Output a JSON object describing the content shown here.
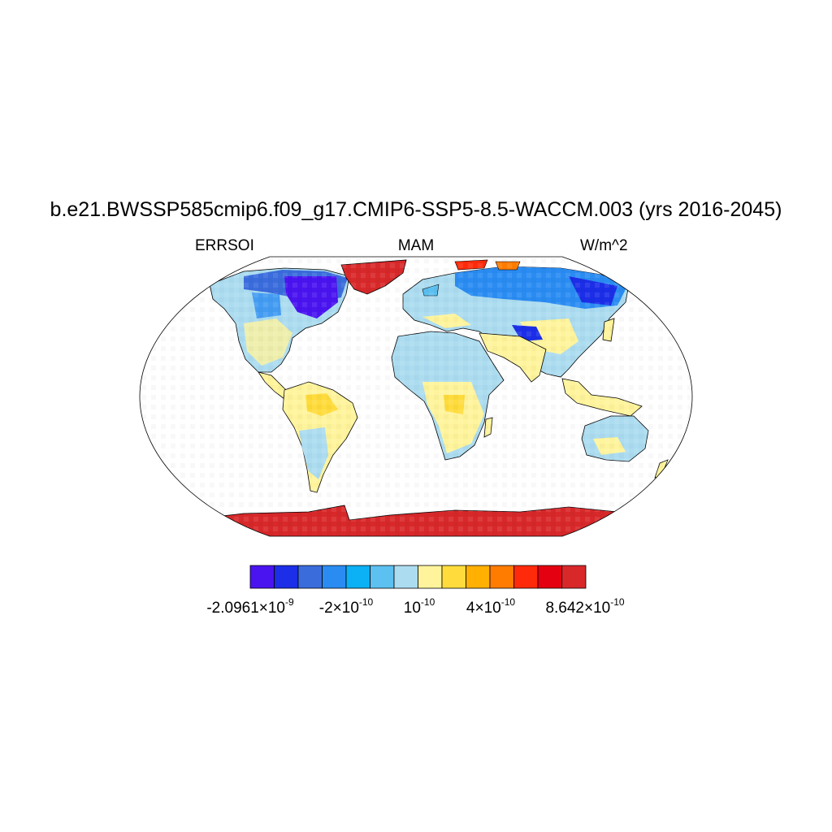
{
  "title": "b.e21.BWSSP585cmip6.f09_g17.CMIP6-SSP5-8.5-WACCM.003 (yrs 2016-2045)",
  "subtitle_left": "ERRSOI",
  "subtitle_center": "MAM",
  "subtitle_right": "W/m^2",
  "colorbar": {
    "colors": [
      "#4a14f0",
      "#1c2ee8",
      "#3a6cdc",
      "#2a8cf2",
      "#0cb0f4",
      "#5cc0f0",
      "#acdcf0",
      "#fff49c",
      "#ffdc3c",
      "#ffb000",
      "#ff7c00",
      "#ff2a0a",
      "#e40010",
      "#d8282a"
    ],
    "labels": [
      {
        "mantissa": "-2.0961×10",
        "exponent": "-9"
      },
      {
        "mantissa": "-2×10",
        "exponent": "-10"
      },
      {
        "mantissa": "10",
        "exponent": "-10"
      },
      {
        "mantissa": "4×10",
        "exponent": "-10"
      },
      {
        "mantissa": "8.642×10",
        "exponent": "-10"
      }
    ]
  },
  "map": {
    "projection": "Robinson",
    "land_outline_color": "#000000",
    "ocean_color": "#ffffff"
  }
}
